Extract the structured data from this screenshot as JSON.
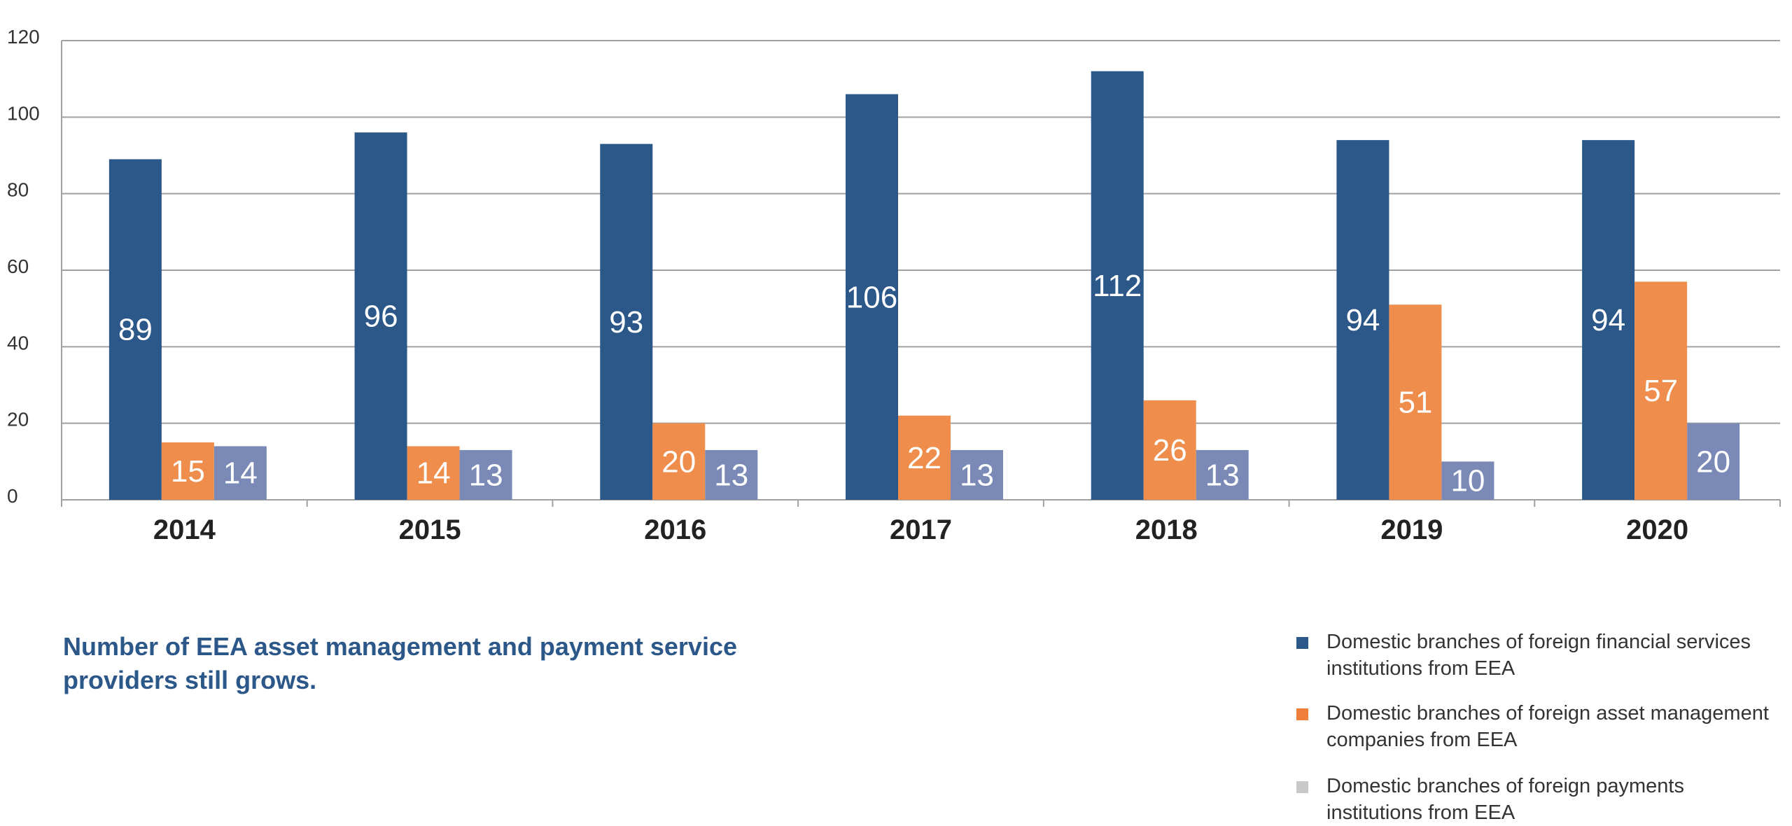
{
  "chart_data": {
    "type": "bar",
    "title": "Number of EEA asset management and payment service providers still grows.",
    "xlabel": "",
    "ylabel": "",
    "ylim": [
      0,
      120
    ],
    "yticks": [
      "0",
      "20",
      "40",
      "60",
      "80",
      "100",
      "120"
    ],
    "grid": true,
    "legend_position": "bottom-right",
    "categories": [
      "2014",
      "2015",
      "2016",
      "2017",
      "2018",
      "2019",
      "2020"
    ],
    "series": [
      {
        "name": "Domestic branches of foreign financial services institutions from EEA",
        "color": "#2c5789",
        "legend_color": "#2c5789",
        "values": [
          89,
          96,
          93,
          106,
          112,
          94,
          94
        ]
      },
      {
        "name": "Domestic branches of foreign asset management companies from EEA",
        "color": "#ef8e4c",
        "legend_color": "#ef7f3a",
        "values": [
          15,
          14,
          20,
          22,
          26,
          51,
          57
        ]
      },
      {
        "name": "Domestic branches of foreign payments institutions from EEA",
        "color": "#7a89b5",
        "legend_color": "#c8c8c8",
        "values": [
          14,
          13,
          13,
          13,
          13,
          10,
          20
        ]
      }
    ]
  }
}
